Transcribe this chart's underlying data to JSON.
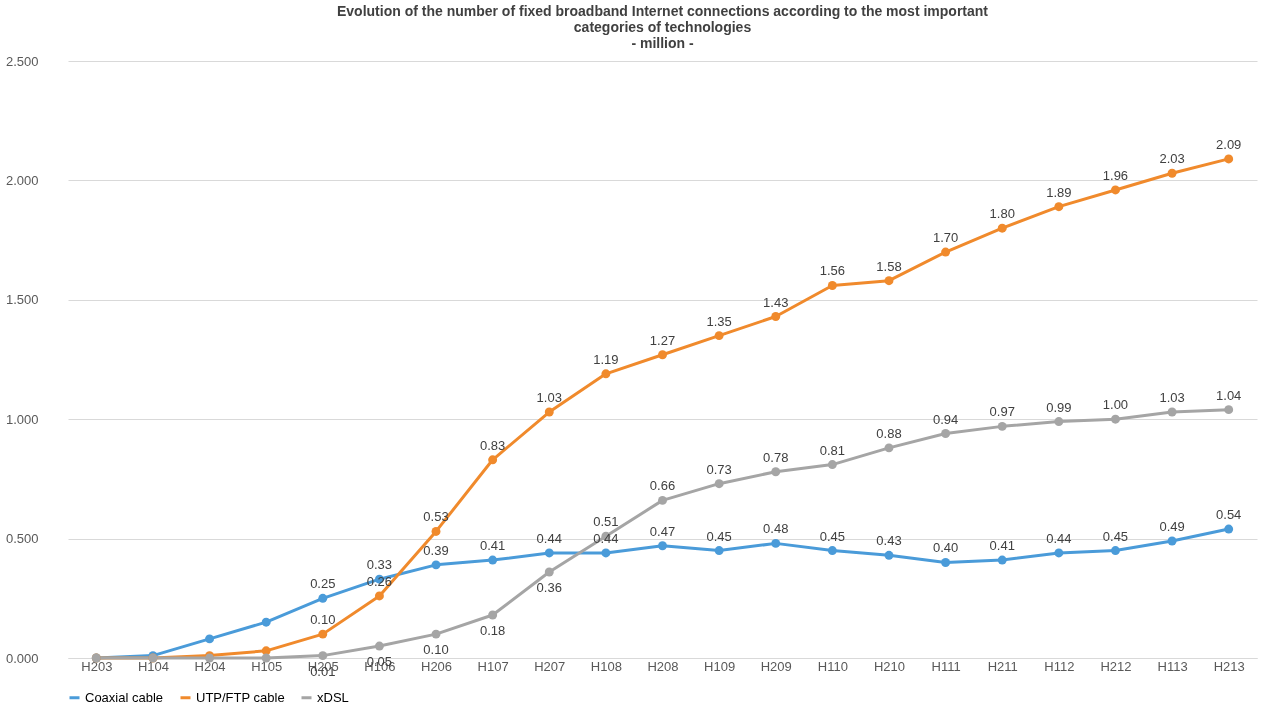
{
  "chart_data": {
    "type": "line",
    "title": "Evolution of the number of fixed broadband  Internet connections according to the most important\ncategories of technologies\n- million -",
    "categories": [
      "H203",
      "H104",
      "H204",
      "H105",
      "H205",
      "H106",
      "H206",
      "H107",
      "H207",
      "H108",
      "H208",
      "H109",
      "H209",
      "H110",
      "H210",
      "H111",
      "H211",
      "H112",
      "H212",
      "H113",
      "H213"
    ],
    "series": [
      {
        "name": "Coaxial cable",
        "color": "#4a9bd9",
        "values": [
          0,
          0.01,
          0.08,
          0.15,
          0.25,
          0.33,
          0.39,
          0.41,
          0.44,
          0.44,
          0.47,
          0.45,
          0.48,
          0.45,
          0.43,
          0.4,
          0.41,
          0.44,
          0.45,
          0.49,
          0.54
        ],
        "value_labels": [
          null,
          null,
          null,
          null,
          "0.25",
          "0.33",
          "0.39",
          "0.41",
          "0.44",
          "0.44",
          "0.47",
          "0.45",
          "0.48",
          "0.45",
          "0.43",
          "0.40",
          "0.41",
          "0.44",
          "0.45",
          "0.49",
          "0.54"
        ]
      },
      {
        "name": "UTP/FTP cable",
        "color": "#f08a2c",
        "values": [
          0,
          0,
          0.01,
          0.03,
          0.1,
          0.26,
          0.53,
          0.83,
          1.03,
          1.19,
          1.27,
          1.35,
          1.43,
          1.56,
          1.58,
          1.7,
          1.8,
          1.89,
          1.96,
          2.03,
          2.09
        ],
        "value_labels": [
          null,
          null,
          null,
          null,
          "0.10",
          "0.26",
          "0.53",
          "0.83",
          "1.03",
          "1.19",
          "1.27",
          "1.35",
          "1.43",
          "1.56",
          "1.58",
          "1.70",
          "1.80",
          "1.89",
          "1.96",
          "2.03",
          "2.09"
        ]
      },
      {
        "name": "xDSL",
        "color": "#a5a5a5",
        "values": [
          0,
          0,
          0,
          0,
          0.01,
          0.05,
          0.1,
          0.18,
          0.36,
          0.51,
          0.66,
          0.73,
          0.78,
          0.81,
          0.88,
          0.94,
          0.97,
          0.99,
          1.0,
          1.03,
          1.04
        ],
        "value_labels": [
          null,
          null,
          null,
          null,
          "0.01",
          "0.05",
          "0.10",
          "0.18",
          "0.36",
          "0.51",
          "0.66",
          "0.73",
          "0.78",
          "0.81",
          "0.88",
          "0.94",
          "0.97",
          "0.99",
          "1.00",
          "1.03",
          "1.04"
        ]
      }
    ],
    "ylim": [
      0,
      2.5
    ],
    "yticks": [
      {
        "value": 0,
        "label": "0.000"
      },
      {
        "value": 0.5,
        "label": "0.500"
      },
      {
        "value": 1,
        "label": "1.000"
      },
      {
        "value": 1.5,
        "label": "1.500"
      },
      {
        "value": 2,
        "label": "2.000"
      },
      {
        "value": 2.5,
        "label": "2.500"
      }
    ],
    "grid": "y",
    "legend": "bottom",
    "marker": "circle",
    "line_style": "solid"
  }
}
